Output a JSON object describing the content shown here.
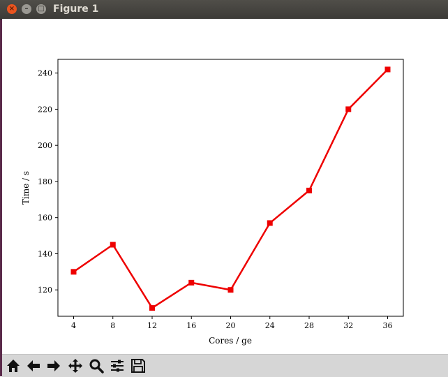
{
  "window": {
    "title": "Figure 1"
  },
  "toolbar": {
    "buttons": [
      {
        "icon": "home-icon"
      },
      {
        "icon": "back-icon"
      },
      {
        "icon": "forward-icon"
      },
      {
        "icon": "pan-icon"
      },
      {
        "icon": "zoom-icon"
      },
      {
        "icon": "subplots-icon"
      },
      {
        "icon": "save-icon"
      }
    ]
  },
  "chart_data": {
    "type": "line",
    "xlabel": "Cores / ge",
    "ylabel": "Time / s",
    "x": [
      4,
      8,
      12,
      16,
      20,
      24,
      28,
      32,
      36
    ],
    "series": [
      {
        "values": [
          130,
          145,
          110,
          124,
          120,
          157,
          175,
          220,
          242
        ],
        "color": "#ee0000",
        "marker": "square"
      }
    ],
    "xticks": [
      4,
      8,
      12,
      16,
      20,
      24,
      28,
      32,
      36
    ],
    "yticks": [
      120,
      140,
      160,
      180,
      200,
      220,
      240
    ],
    "xlim": [
      2.4,
      37.6
    ],
    "ylim": [
      105.4,
      247.6
    ],
    "grid": false
  }
}
